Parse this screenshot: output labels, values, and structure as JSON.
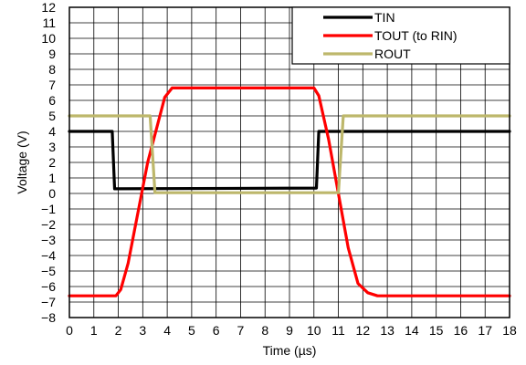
{
  "chart_data": {
    "type": "line",
    "title": "",
    "xlabel": "Time (µs)",
    "ylabel": "Voltage (V)",
    "xlim": [
      0,
      18
    ],
    "ylim": [
      -8,
      12
    ],
    "xticks": [
      0,
      1,
      2,
      3,
      4,
      5,
      6,
      7,
      8,
      9,
      10,
      11,
      12,
      13,
      14,
      15,
      16,
      17,
      18
    ],
    "yticks": [
      {
        "value": 12,
        "label": "12"
      },
      {
        "value": 11,
        "label": "11"
      },
      {
        "value": 10,
        "label": "10"
      },
      {
        "value": 9,
        "label": "9"
      },
      {
        "value": 8,
        "label": "8"
      },
      {
        "value": 7,
        "label": "7"
      },
      {
        "value": 6,
        "label": "6"
      },
      {
        "value": 5,
        "label": "5"
      },
      {
        "value": 4,
        "label": "4"
      },
      {
        "value": 3,
        "label": "3"
      },
      {
        "value": 2,
        "label": "2"
      },
      {
        "value": 1,
        "label": "1"
      },
      {
        "value": 0,
        "label": "0"
      },
      {
        "value": -1,
        "label": "−1"
      },
      {
        "value": -2,
        "label": "−2"
      },
      {
        "value": -3,
        "label": "−3"
      },
      {
        "value": -4,
        "label": "−4"
      },
      {
        "value": -5,
        "label": "−5"
      },
      {
        "value": -6,
        "label": "−6"
      },
      {
        "value": -7,
        "label": "−7"
      },
      {
        "value": -8,
        "label": "−8"
      }
    ],
    "grid": true,
    "legend_position": "top-right",
    "series": [
      {
        "name": "TIN",
        "color": "#000000",
        "points": [
          [
            0,
            4
          ],
          [
            1.75,
            4
          ],
          [
            1.85,
            0.3
          ],
          [
            10.1,
            0.35
          ],
          [
            10.2,
            4
          ],
          [
            18,
            4
          ]
        ]
      },
      {
        "name": "TOUT (to RIN)",
        "color": "#ff0000",
        "points": [
          [
            0,
            -6.6
          ],
          [
            1.9,
            -6.6
          ],
          [
            2.1,
            -6.2
          ],
          [
            2.4,
            -4.5
          ],
          [
            3.2,
            2.0
          ],
          [
            3.9,
            6.2
          ],
          [
            4.2,
            6.8
          ],
          [
            10.0,
            6.8
          ],
          [
            10.2,
            6.3
          ],
          [
            10.6,
            3.5
          ],
          [
            11.4,
            -3.5
          ],
          [
            11.8,
            -5.8
          ],
          [
            12.2,
            -6.4
          ],
          [
            12.6,
            -6.6
          ],
          [
            18,
            -6.6
          ]
        ]
      },
      {
        "name": "ROUT",
        "color": "#bdb76b",
        "points": [
          [
            0,
            5
          ],
          [
            3.3,
            5
          ],
          [
            3.5,
            0.05
          ],
          [
            11.0,
            0.05
          ],
          [
            11.2,
            5
          ],
          [
            18,
            5
          ]
        ]
      }
    ]
  }
}
